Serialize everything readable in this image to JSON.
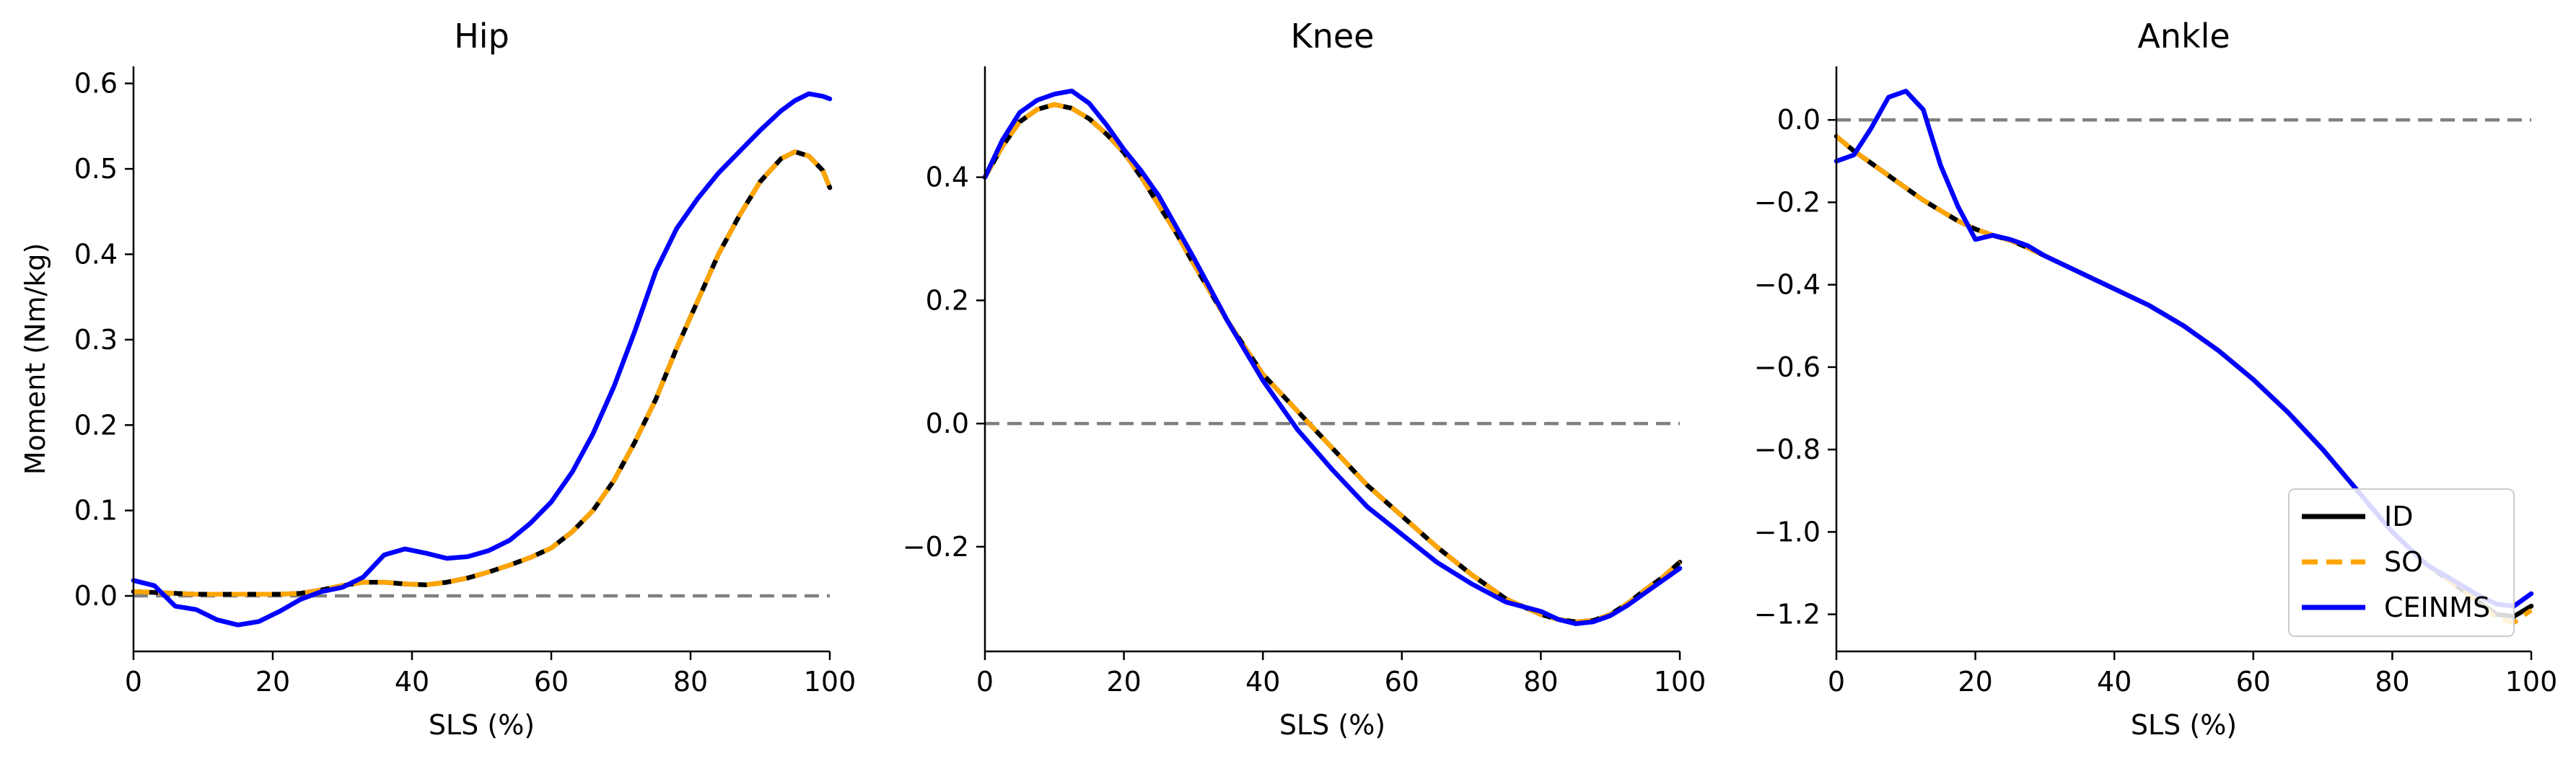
{
  "chart_data": [
    {
      "type": "line",
      "title": "Hip",
      "xlabel": "SLS (%)",
      "ylabel": "Moment (Nm/kg)",
      "xlim": [
        0,
        100
      ],
      "ylim": [
        -0.065,
        0.62
      ],
      "xticks": [
        "0",
        "20",
        "40",
        "60",
        "80",
        "100"
      ],
      "yticks": [
        "0.0",
        "0.1",
        "0.2",
        "0.3",
        "0.4",
        "0.5",
        "0.6"
      ],
      "zero_line": true,
      "x": [
        0,
        3,
        6,
        9,
        12,
        15,
        18,
        21,
        24,
        27,
        30,
        33,
        36,
        39,
        42,
        45,
        48,
        51,
        54,
        57,
        60,
        63,
        66,
        69,
        72,
        75,
        78,
        81,
        84,
        87,
        90,
        93,
        95,
        97,
        99,
        100
      ],
      "series": [
        {
          "name": "ID",
          "color": "#000000",
          "dash": "solid",
          "values": [
            0.005,
            0.004,
            0.003,
            0.002,
            0.002,
            0.002,
            0.002,
            0.002,
            0.003,
            0.007,
            0.012,
            0.016,
            0.016,
            0.014,
            0.013,
            0.016,
            0.021,
            0.028,
            0.036,
            0.045,
            0.056,
            0.075,
            0.1,
            0.135,
            0.18,
            0.23,
            0.29,
            0.345,
            0.4,
            0.445,
            0.485,
            0.512,
            0.52,
            0.515,
            0.498,
            0.478
          ]
        },
        {
          "name": "SO",
          "color": "#FFA500",
          "dash": "dashed",
          "values": [
            0.005,
            0.004,
            0.003,
            0.002,
            0.002,
            0.002,
            0.002,
            0.002,
            0.003,
            0.007,
            0.012,
            0.016,
            0.016,
            0.014,
            0.013,
            0.016,
            0.021,
            0.028,
            0.036,
            0.045,
            0.056,
            0.075,
            0.1,
            0.135,
            0.18,
            0.23,
            0.29,
            0.345,
            0.4,
            0.445,
            0.485,
            0.512,
            0.52,
            0.515,
            0.498,
            0.478
          ]
        },
        {
          "name": "CEINMS",
          "color": "#0000FF",
          "dash": "solid",
          "values": [
            0.018,
            0.012,
            -0.012,
            -0.016,
            -0.028,
            -0.034,
            -0.03,
            -0.018,
            -0.004,
            0.005,
            0.01,
            0.022,
            0.048,
            0.055,
            0.05,
            0.044,
            0.046,
            0.053,
            0.065,
            0.085,
            0.11,
            0.145,
            0.19,
            0.245,
            0.31,
            0.38,
            0.43,
            0.465,
            0.495,
            0.52,
            0.545,
            0.568,
            0.58,
            0.588,
            0.585,
            0.582
          ]
        }
      ]
    },
    {
      "type": "line",
      "title": "Knee",
      "xlabel": "SLS (%)",
      "ylabel": "",
      "xlim": [
        0,
        100
      ],
      "ylim": [
        -0.37,
        0.58
      ],
      "xticks": [
        "0",
        "20",
        "40",
        "60",
        "80",
        "100"
      ],
      "yticks": [
        "−0.2",
        "0.0",
        "0.2",
        "0.4"
      ],
      "zero_line": true,
      "x": [
        0,
        2.5,
        5,
        7.5,
        10,
        12.5,
        15,
        17.5,
        20,
        22.5,
        25,
        27.5,
        30,
        35,
        40,
        45,
        50,
        55,
        60,
        65,
        70,
        75,
        80,
        82.5,
        85,
        87.5,
        90,
        92.5,
        95,
        97.5,
        100
      ],
      "series": [
        {
          "name": "ID",
          "color": "#000000",
          "dash": "solid",
          "values": [
            0.4,
            0.45,
            0.49,
            0.51,
            0.518,
            0.512,
            0.495,
            0.47,
            0.44,
            0.4,
            0.355,
            0.31,
            0.26,
            0.165,
            0.08,
            0.02,
            -0.04,
            -0.1,
            -0.15,
            -0.2,
            -0.245,
            -0.285,
            -0.31,
            -0.318,
            -0.322,
            -0.32,
            -0.31,
            -0.292,
            -0.27,
            -0.25,
            -0.225
          ]
        },
        {
          "name": "SO",
          "color": "#FFA500",
          "dash": "dashed",
          "values": [
            0.4,
            0.45,
            0.49,
            0.51,
            0.518,
            0.512,
            0.495,
            0.47,
            0.44,
            0.4,
            0.355,
            0.31,
            0.26,
            0.165,
            0.08,
            0.02,
            -0.04,
            -0.1,
            -0.15,
            -0.2,
            -0.245,
            -0.285,
            -0.31,
            -0.318,
            -0.322,
            -0.32,
            -0.31,
            -0.292,
            -0.27,
            -0.25,
            -0.225
          ]
        },
        {
          "name": "CEINMS",
          "color": "#0000FF",
          "dash": "solid",
          "values": [
            0.4,
            0.46,
            0.505,
            0.525,
            0.535,
            0.54,
            0.52,
            0.485,
            0.445,
            0.41,
            0.37,
            0.32,
            0.27,
            0.165,
            0.07,
            -0.01,
            -0.075,
            -0.135,
            -0.18,
            -0.225,
            -0.26,
            -0.29,
            -0.305,
            -0.318,
            -0.325,
            -0.322,
            -0.312,
            -0.295,
            -0.275,
            -0.255,
            -0.235
          ]
        }
      ]
    },
    {
      "type": "line",
      "title": "Ankle",
      "xlabel": "SLS (%)",
      "ylabel": "",
      "xlim": [
        0,
        100
      ],
      "ylim": [
        -1.29,
        0.13
      ],
      "xticks": [
        "0",
        "20",
        "40",
        "60",
        "80",
        "100"
      ],
      "yticks": [
        "−1.2",
        "−1.0",
        "−0.8",
        "−0.6",
        "−0.4",
        "−0.2",
        "0.0"
      ],
      "zero_line": true,
      "x": [
        0,
        2.5,
        5,
        7.5,
        10,
        12.5,
        15,
        17.5,
        20,
        22.5,
        25,
        27.5,
        30,
        35,
        40,
        45,
        50,
        55,
        60,
        65,
        70,
        75,
        80,
        85,
        90,
        92.5,
        95,
        97.5,
        100
      ],
      "series": [
        {
          "name": "ID",
          "color": "#000000",
          "dash": "solid",
          "values": [
            -0.04,
            -0.075,
            -0.105,
            -0.135,
            -0.165,
            -0.195,
            -0.22,
            -0.245,
            -0.265,
            -0.28,
            -0.292,
            -0.31,
            -0.33,
            -0.37,
            -0.41,
            -0.45,
            -0.5,
            -0.56,
            -0.63,
            -0.71,
            -0.8,
            -0.9,
            -1.0,
            -1.08,
            -1.14,
            -1.17,
            -1.2,
            -1.205,
            -1.18
          ]
        },
        {
          "name": "SO",
          "color": "#FFA500",
          "dash": "dashed",
          "values": [
            -0.04,
            -0.075,
            -0.105,
            -0.135,
            -0.165,
            -0.195,
            -0.22,
            -0.245,
            -0.265,
            -0.28,
            -0.292,
            -0.31,
            -0.33,
            -0.37,
            -0.41,
            -0.45,
            -0.5,
            -0.56,
            -0.63,
            -0.71,
            -0.8,
            -0.9,
            -1.0,
            -1.08,
            -1.14,
            -1.17,
            -1.21,
            -1.22,
            -1.19
          ]
        },
        {
          "name": "CEINMS",
          "color": "#0000FF",
          "dash": "solid",
          "values": [
            -0.1,
            -0.085,
            -0.02,
            0.055,
            0.07,
            0.025,
            -0.11,
            -0.21,
            -0.29,
            -0.28,
            -0.29,
            -0.305,
            -0.33,
            -0.37,
            -0.41,
            -0.45,
            -0.5,
            -0.56,
            -0.63,
            -0.71,
            -0.8,
            -0.9,
            -1.0,
            -1.08,
            -1.13,
            -1.155,
            -1.175,
            -1.18,
            -1.15
          ]
        }
      ]
    }
  ],
  "legend": {
    "placement": "lower-right",
    "entries": [
      {
        "label": "ID",
        "color": "#000000",
        "dash": "solid"
      },
      {
        "label": "SO",
        "color": "#FFA500",
        "dash": "dashed"
      },
      {
        "label": "CEINMS",
        "color": "#0000FF",
        "dash": "solid"
      }
    ]
  },
  "colors": {
    "zero_line": "#808080",
    "axis": "#000000"
  }
}
